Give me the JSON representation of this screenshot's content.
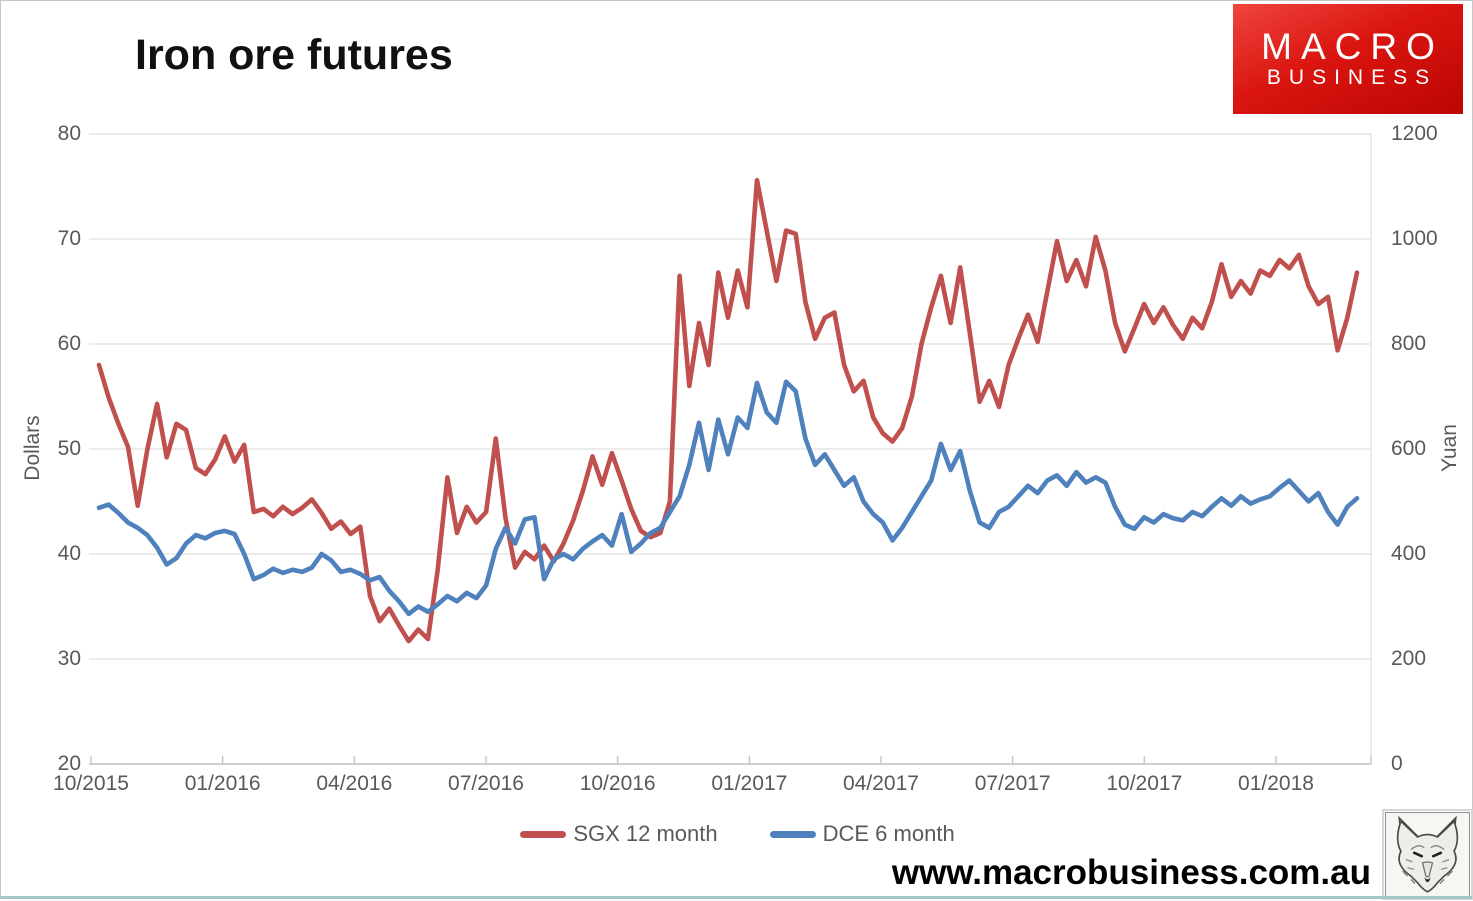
{
  "page": {
    "title": "Iron ore futures",
    "website": "www.macrobusiness.com.au"
  },
  "logo": {
    "line1": "MACRO",
    "line2": "BUSINESS",
    "bg_color": "#d01510",
    "text_color": "#ffffff"
  },
  "footer": {
    "fox_badge_alt": "fox engraving"
  },
  "chart_data": {
    "type": "line",
    "title": "Iron ore futures",
    "grid": true,
    "grid_color": "#d9d9d9",
    "axis_text_color": "#595959",
    "legend_position": "bottom",
    "x_axis": {
      "tick_labels": [
        "10/2015",
        "01/2016",
        "04/2016",
        "07/2016",
        "10/2016",
        "01/2017",
        "04/2017",
        "07/2017",
        "10/2017",
        "01/2018"
      ],
      "range_note": "weekly data points, evenly spaced, Oct 2015 to late Mar 2018"
    },
    "left_axis": {
      "label": "Dollars",
      "ticks": [
        80,
        70,
        60,
        50,
        40,
        30,
        20
      ],
      "range": [
        20,
        80
      ]
    },
    "right_axis": {
      "label": "Yuan",
      "ticks": [
        1200,
        1000,
        800,
        600,
        400,
        200,
        0
      ],
      "range": [
        0,
        1200
      ]
    },
    "series": [
      {
        "name": "SGX 12 month",
        "axis": "left",
        "color": "#c0504d",
        "values": [
          58.0,
          54.9,
          52.4,
          50.2,
          44.6,
          50.0,
          54.3,
          49.2,
          52.4,
          51.8,
          48.2,
          47.6,
          49.0,
          51.2,
          48.8,
          50.4,
          44.0,
          44.3,
          43.6,
          44.5,
          43.8,
          44.4,
          45.2,
          43.9,
          42.4,
          43.1,
          41.9,
          42.6,
          36.0,
          33.6,
          34.8,
          33.2,
          31.7,
          32.8,
          31.9,
          38.5,
          47.3,
          42.0,
          44.5,
          43.0,
          44.0,
          51.0,
          43.5,
          38.7,
          40.2,
          39.5,
          40.8,
          39.3,
          41.0,
          43.2,
          46.0,
          49.3,
          46.6,
          49.6,
          47.0,
          44.3,
          42.2,
          41.6,
          42.0,
          45.0,
          66.5,
          56.0,
          62.0,
          58.0,
          66.8,
          62.5,
          67.0,
          63.5,
          75.6,
          70.8,
          66.0,
          70.8,
          70.5,
          64.0,
          60.5,
          62.5,
          63.0,
          58.0,
          55.5,
          56.5,
          53.0,
          51.5,
          50.7,
          52.0,
          55.0,
          60.0,
          63.5,
          66.5,
          62.0,
          67.3,
          61.0,
          54.5,
          56.5,
          54.0,
          58.0,
          60.5,
          62.8,
          60.2,
          65.0,
          69.8,
          66.0,
          68.0,
          65.5,
          70.2,
          67.0,
          62.0,
          59.3,
          61.5,
          63.8,
          62.0,
          63.5,
          61.8,
          60.5,
          62.5,
          61.5,
          64.0,
          67.6,
          64.5,
          66.0,
          64.8,
          67.0,
          66.5,
          68.0,
          67.2,
          68.5,
          65.5,
          63.8,
          64.5,
          59.4,
          62.5,
          66.8
        ]
      },
      {
        "name": "DCE 6 month",
        "axis": "right",
        "color": "#4f81bd",
        "values": [
          488,
          494,
          478,
          460,
          450,
          436,
          412,
          380,
          392,
          420,
          436,
          430,
          440,
          444,
          438,
          400,
          352,
          360,
          372,
          364,
          370,
          366,
          374,
          400,
          388,
          366,
          370,
          362,
          350,
          356,
          330,
          310,
          286,
          300,
          290,
          304,
          320,
          310,
          326,
          316,
          340,
          410,
          450,
          420,
          466,
          470,
          352,
          390,
          400,
          390,
          410,
          424,
          436,
          416,
          476,
          404,
          420,
          440,
          450,
          480,
          510,
          570,
          650,
          560,
          656,
          590,
          660,
          640,
          726,
          670,
          650,
          728,
          710,
          620,
          570,
          590,
          560,
          530,
          546,
          500,
          476,
          460,
          426,
          450,
          480,
          510,
          540,
          610,
          560,
          596,
          520,
          460,
          450,
          480,
          490,
          510,
          530,
          516,
          540,
          550,
          530,
          556,
          536,
          546,
          536,
          490,
          456,
          448,
          470,
          460,
          476,
          468,
          464,
          480,
          472,
          490,
          506,
          492,
          510,
          496,
          504,
          510,
          526,
          540,
          520,
          500,
          516,
          480,
          456,
          490,
          506
        ]
      }
    ]
  }
}
